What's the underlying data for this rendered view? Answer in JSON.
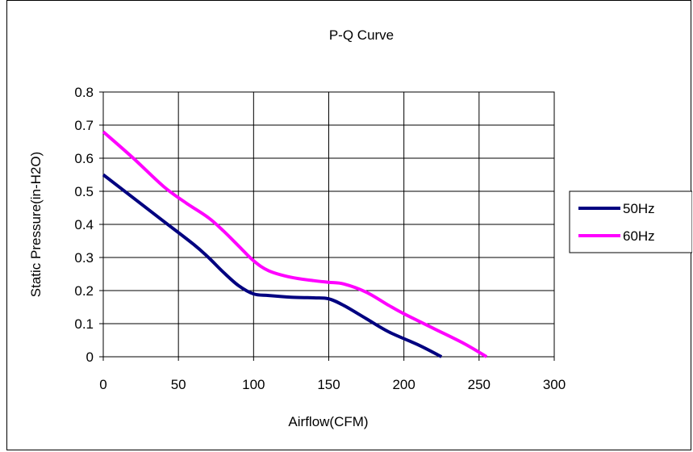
{
  "chart_data": {
    "type": "line",
    "title": "P-Q Curve",
    "xlabel": "Airflow(CFM)",
    "ylabel": "Static Pressure(in-H2O)",
    "xlim": [
      0,
      300
    ],
    "ylim": [
      0,
      0.8
    ],
    "xticks": [
      0,
      50,
      100,
      150,
      200,
      250,
      300
    ],
    "yticks": [
      0,
      0.1,
      0.2,
      0.3,
      0.4,
      0.5,
      0.6,
      0.7,
      0.8
    ],
    "xtick_labels": [
      "0",
      "50",
      "100",
      "150",
      "200",
      "250",
      "300"
    ],
    "ytick_labels": [
      "0",
      "0.1",
      "0.2",
      "0.3",
      "0.4",
      "0.5",
      "0.6",
      "0.7",
      "0.8"
    ],
    "grid": true,
    "legend_position": "right",
    "series": [
      {
        "name": "50Hz",
        "color": "#000080",
        "x": [
          0,
          20,
          40,
          60,
          70,
          80,
          90,
          100,
          110,
          125,
          140,
          150,
          160,
          175,
          190,
          210,
          225
        ],
        "y": [
          0.55,
          0.48,
          0.41,
          0.34,
          0.3,
          0.255,
          0.215,
          0.19,
          0.185,
          0.18,
          0.178,
          0.175,
          0.155,
          0.115,
          0.075,
          0.035,
          0.0
        ]
      },
      {
        "name": "60Hz",
        "color": "#ff00ff",
        "x": [
          0,
          20,
          40,
          55,
          70,
          80,
          90,
          100,
          110,
          125,
          140,
          150,
          160,
          175,
          190,
          200,
          220,
          240,
          255
        ],
        "y": [
          0.68,
          0.6,
          0.515,
          0.465,
          0.42,
          0.38,
          0.335,
          0.29,
          0.26,
          0.24,
          0.23,
          0.225,
          0.22,
          0.195,
          0.155,
          0.13,
          0.085,
          0.04,
          0.0
        ]
      }
    ]
  }
}
